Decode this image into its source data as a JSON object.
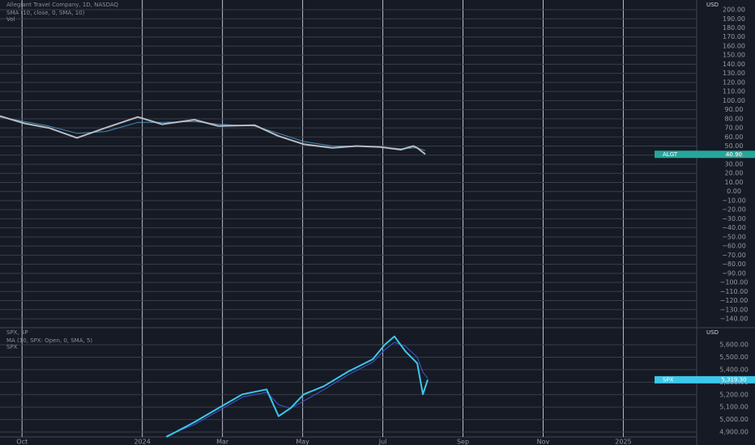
{
  "chart_data": [
    {
      "type": "line",
      "title": "Allegiant Travel Company, 1D, NASDAQ",
      "currency": "USD",
      "x": [
        -0.55,
        0.06,
        0.67,
        1.37,
        2.08,
        2.89,
        3.49,
        4.3,
        4.9,
        5.8,
        6.4,
        7.03,
        7.74,
        8.34,
        8.95,
        9.45,
        9.76,
        9.86,
        10.06
      ],
      "series": [
        {
          "name": "SMA (10, close, 0, SMA, 10)",
          "color": "#4a8fb8",
          "values": [
            82,
            77,
            72,
            64,
            66,
            76,
            76,
            77,
            74,
            72,
            64,
            55,
            50,
            50,
            49,
            47,
            48,
            48,
            45
          ]
        },
        {
          "name": "Vol",
          "color": "#b8bcc4",
          "values": [
            83,
            75,
            70,
            59,
            70,
            82,
            74,
            79,
            72,
            73,
            61,
            52,
            48,
            50,
            49,
            46,
            50,
            48,
            41
          ]
        }
      ],
      "last_label": {
        "symbol": "ALGT",
        "value": 40.9,
        "label": "40.90",
        "color": "#26a69a"
      },
      "ylim": [
        -149.8,
        210.7
      ],
      "yticks": [
        {
          "value": 200,
          "label": "200.00"
        },
        {
          "value": 190,
          "label": "190.00"
        },
        {
          "value": 180,
          "label": "180.00"
        },
        {
          "value": 170,
          "label": "170.00"
        },
        {
          "value": 160,
          "label": "160.00"
        },
        {
          "value": 150,
          "label": "150.00"
        },
        {
          "value": 140,
          "label": "140.00"
        },
        {
          "value": 130,
          "label": "130.00"
        },
        {
          "value": 120,
          "label": "120.00"
        },
        {
          "value": 110,
          "label": "110.00"
        },
        {
          "value": 100,
          "label": "100.00"
        },
        {
          "value": 90,
          "label": "90.00"
        },
        {
          "value": 80,
          "label": "80.00"
        },
        {
          "value": 70,
          "label": "70.00"
        },
        {
          "value": 60,
          "label": "60.00"
        },
        {
          "value": 50,
          "label": "50.00"
        },
        {
          "value": 40,
          "label": "40.00"
        },
        {
          "value": 30,
          "label": "30.00"
        },
        {
          "value": 20,
          "label": "20.00"
        },
        {
          "value": 10,
          "label": "10.00"
        },
        {
          "value": 0,
          "label": "0.00"
        },
        {
          "value": -10,
          "label": "−10.00"
        },
        {
          "value": -20,
          "label": "−20.00"
        },
        {
          "value": -30,
          "label": "−30.00"
        },
        {
          "value": -40,
          "label": "−40.00"
        },
        {
          "value": -50,
          "label": "−50.00"
        },
        {
          "value": -60,
          "label": "−60.00"
        },
        {
          "value": -70,
          "label": "−70.00"
        },
        {
          "value": -80,
          "label": "−80.00"
        },
        {
          "value": -90,
          "label": "−90.00"
        },
        {
          "value": -100,
          "label": "−100.00"
        },
        {
          "value": -110,
          "label": "−110.00"
        },
        {
          "value": -120,
          "label": "−120.00"
        },
        {
          "value": -130,
          "label": "−130.00"
        },
        {
          "value": -140,
          "label": "−140.00"
        }
      ],
      "grid": true
    },
    {
      "type": "line",
      "title": "SPX, SP",
      "currency": "USD",
      "x": [
        3.6,
        4.3,
        4.9,
        5.5,
        6.1,
        6.4,
        6.7,
        7.03,
        7.53,
        8.14,
        8.75,
        9.05,
        9.29,
        9.56,
        9.86,
        10.0,
        10.12
      ],
      "series": [
        {
          "name": "MA (10, SPX: Open, 0, SMA, 5)",
          "color": "#3b5bdb",
          "values": [
            4870,
            4960,
            5070,
            5180,
            5220,
            5120,
            5090,
            5150,
            5240,
            5360,
            5460,
            5560,
            5620,
            5590,
            5500,
            5380,
            5330
          ]
        },
        {
          "name": "SPX",
          "color": "#3cc8ea",
          "values": [
            4861,
            4980,
            5092,
            5203,
            5242,
            5027,
            5092,
            5203,
            5268,
            5386,
            5484,
            5601,
            5667,
            5549,
            5451,
            5203,
            5320
          ]
        }
      ],
      "last_label": {
        "symbol": "SPX",
        "value": 5319.3,
        "label": "5,319.30",
        "color": "#3cc8ea"
      },
      "ylim": [
        4861,
        5737
      ],
      "yticks": [
        {
          "value": 5600,
          "label": "5,600.00"
        },
        {
          "value": 5500,
          "label": "5,500.00"
        },
        {
          "value": 5400,
          "label": "5,400.00"
        },
        {
          "value": 5300,
          "label": "5,300.00"
        },
        {
          "value": 5200,
          "label": "5,200.00"
        },
        {
          "value": 5100,
          "label": "5,100.00"
        },
        {
          "value": 5000,
          "label": "5,000.00"
        },
        {
          "value": 4900,
          "label": "4,900.00"
        }
      ],
      "xlim": [
        -0.55,
        16.83
      ],
      "xticks": [
        {
          "value": 0,
          "label": "Oct"
        },
        {
          "value": 3,
          "label": "2024"
        },
        {
          "value": 5,
          "label": "Mar"
        },
        {
          "value": 7,
          "label": "May"
        },
        {
          "value": 9,
          "label": "Jul"
        },
        {
          "value": 11,
          "label": "Sep"
        },
        {
          "value": 13,
          "label": "Nov"
        },
        {
          "value": 15,
          "label": "2025"
        }
      ],
      "grid": true
    }
  ]
}
